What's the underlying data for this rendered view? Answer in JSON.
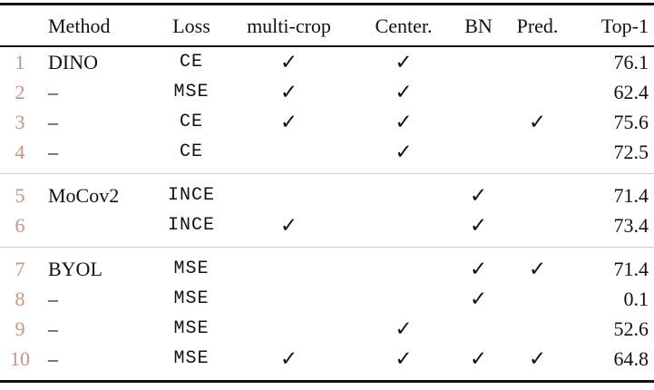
{
  "table": {
    "checkmark": "✓",
    "colors": {
      "text": "#111111",
      "rule": "#111111",
      "divider": "#cccccc",
      "row_number": "#c9947f"
    },
    "headers": [
      "Method",
      "Loss",
      "multi-crop",
      "Center.",
      "BN",
      "Pred.",
      "Top-1"
    ],
    "groups": [
      {
        "rows": [
          {
            "num": "1",
            "method": "DINO",
            "loss": "CE",
            "multi_crop": true,
            "center": true,
            "bn": false,
            "pred": false,
            "top1": "76.1"
          },
          {
            "num": "2",
            "method": "–",
            "loss": "MSE",
            "multi_crop": true,
            "center": true,
            "bn": false,
            "pred": false,
            "top1": "62.4"
          },
          {
            "num": "3",
            "method": "–",
            "loss": "CE",
            "multi_crop": true,
            "center": true,
            "bn": false,
            "pred": true,
            "top1": "75.6"
          },
          {
            "num": "4",
            "method": "–",
            "loss": "CE",
            "multi_crop": false,
            "center": true,
            "bn": false,
            "pred": false,
            "top1": "72.5"
          }
        ]
      },
      {
        "rows": [
          {
            "num": "5",
            "method": "MoCov2",
            "loss": "INCE",
            "multi_crop": false,
            "center": false,
            "bn": true,
            "pred": false,
            "top1": "71.4"
          },
          {
            "num": "6",
            "method": "",
            "loss": "INCE",
            "multi_crop": true,
            "center": false,
            "bn": true,
            "pred": false,
            "top1": "73.4"
          }
        ]
      },
      {
        "rows": [
          {
            "num": "7",
            "method": "BYOL",
            "loss": "MSE",
            "multi_crop": false,
            "center": false,
            "bn": true,
            "pred": true,
            "top1": "71.4"
          },
          {
            "num": "8",
            "method": "–",
            "loss": "MSE",
            "multi_crop": false,
            "center": false,
            "bn": true,
            "pred": false,
            "top1": "0.1"
          },
          {
            "num": "9",
            "method": "–",
            "loss": "MSE",
            "multi_crop": false,
            "center": true,
            "bn": false,
            "pred": false,
            "top1": "52.6"
          },
          {
            "num": "10",
            "method": "–",
            "loss": "MSE",
            "multi_crop": true,
            "center": true,
            "bn": true,
            "pred": true,
            "top1": "64.8"
          }
        ]
      }
    ]
  }
}
